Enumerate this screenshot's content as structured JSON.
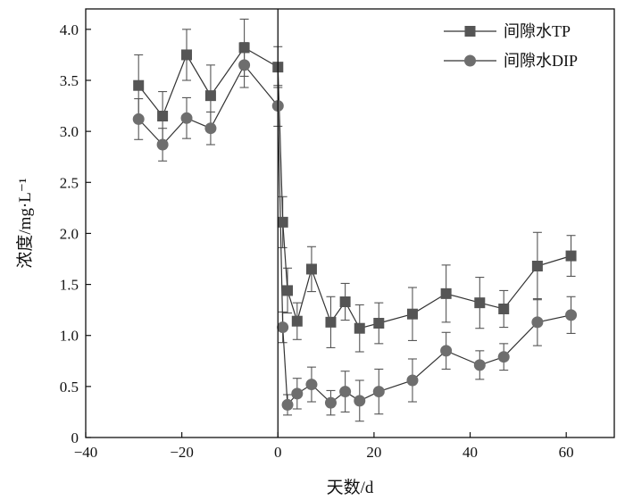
{
  "chart_data": {
    "type": "line",
    "title": "",
    "xlabel": "天数/d",
    "ylabel": "浓度/mg·L⁻¹",
    "xlim": [
      -40,
      70
    ],
    "ylim": [
      0,
      4.2
    ],
    "xticks": [
      -40,
      -20,
      0,
      20,
      40,
      60
    ],
    "yticks": [
      0,
      0.5,
      1.0,
      1.5,
      2.0,
      2.5,
      3.0,
      3.5,
      4.0
    ],
    "ytick_labels": [
      "0",
      "0.5",
      "1.0",
      "1.5",
      "2.0",
      "2.5",
      "3.0",
      "3.5",
      "4.0"
    ],
    "vline_x": 0,
    "grid": false,
    "legend_position": "top-right",
    "series": [
      {
        "name": "间隙水TP",
        "marker": "square",
        "color": "#555555",
        "x": [
          -29,
          -24,
          -19,
          -14,
          -7,
          0,
          1,
          2,
          4,
          7,
          11,
          14,
          17,
          21,
          28,
          35,
          42,
          47,
          54,
          61
        ],
        "y": [
          3.45,
          3.15,
          3.75,
          3.35,
          3.82,
          3.63,
          2.11,
          1.44,
          1.14,
          1.65,
          1.13,
          1.33,
          1.07,
          1.12,
          1.21,
          1.41,
          1.32,
          1.26,
          1.68,
          1.78
        ],
        "err": [
          0.3,
          0.24,
          0.25,
          0.3,
          0.28,
          0.2,
          0.25,
          0.22,
          0.18,
          0.22,
          0.25,
          0.18,
          0.23,
          0.2,
          0.26,
          0.28,
          0.25,
          0.18,
          0.33,
          0.2
        ]
      },
      {
        "name": "间隙水DIP",
        "marker": "circle",
        "color": "#6e6e6e",
        "x": [
          -29,
          -24,
          -19,
          -14,
          -7,
          0,
          1,
          2,
          4,
          7,
          11,
          14,
          17,
          21,
          28,
          35,
          42,
          47,
          54,
          61
        ],
        "y": [
          3.12,
          2.87,
          3.13,
          3.03,
          3.65,
          3.25,
          1.08,
          0.32,
          0.43,
          0.52,
          0.34,
          0.45,
          0.36,
          0.45,
          0.56,
          0.85,
          0.71,
          0.79,
          1.13,
          1.2
        ],
        "err": [
          0.2,
          0.16,
          0.2,
          0.16,
          0.22,
          0.2,
          0.15,
          0.1,
          0.15,
          0.17,
          0.12,
          0.2,
          0.2,
          0.22,
          0.21,
          0.18,
          0.14,
          0.13,
          0.23,
          0.18
        ]
      }
    ]
  }
}
